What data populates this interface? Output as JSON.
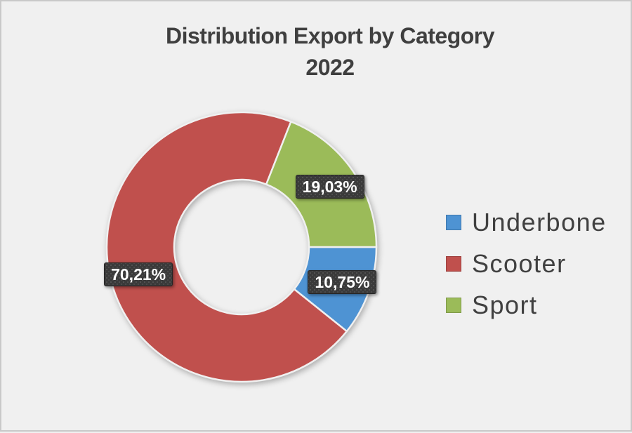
{
  "frame": {
    "background_color": "#F0F0F0",
    "border_color": "#C9C9C9"
  },
  "chart_data": {
    "type": "pie",
    "subtype": "doughnut",
    "title": "Distribution Export by Category",
    "subtitle": "2022",
    "categories": [
      "Underbone",
      "Scooter",
      "Sport"
    ],
    "values": [
      10.75,
      70.21,
      19.03
    ],
    "value_labels": [
      "10,75%",
      "70,21%",
      "19,03%"
    ],
    "colors": [
      "#4E93D3",
      "#C0504D",
      "#9BBB59"
    ],
    "start_angle_deg": 90,
    "direction": "clockwise",
    "hole_ratio": 0.5,
    "legend_position": "right",
    "title_color": "#3F3F3F",
    "legend_text_color": "#404040",
    "data_label_style": {
      "background": "#3A3A3A",
      "text_color": "#FFFFFF",
      "pattern": "dotted"
    }
  }
}
